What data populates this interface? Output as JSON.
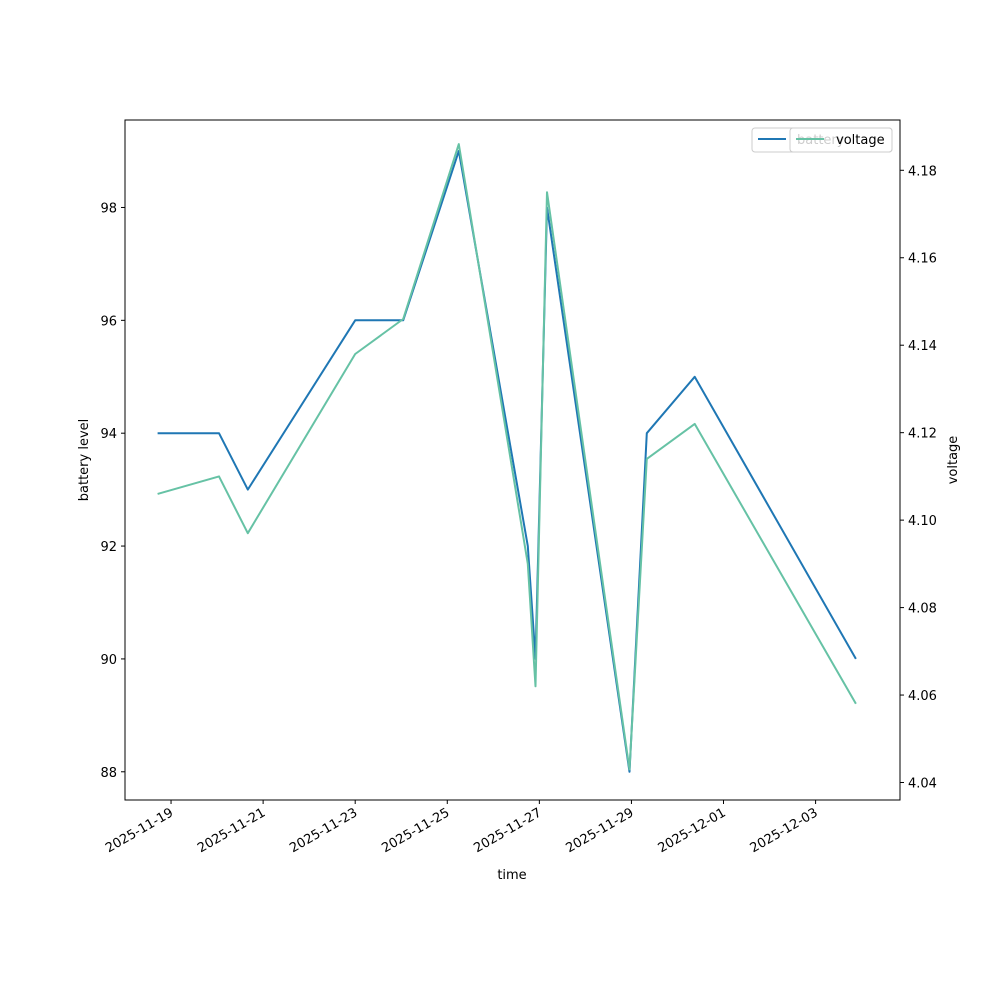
{
  "chart_data": {
    "type": "line",
    "xlabel": "time",
    "ylabel": "battery level",
    "y2label": "voltage",
    "xlim": [
      "2025-11-18T00:00",
      "2025-12-04T20:00"
    ],
    "ylim": [
      87.5,
      99.55
    ],
    "y2lim": [
      4.036,
      4.1915
    ],
    "x_ticks": [
      "2025-11-19",
      "2025-11-21",
      "2025-11-23",
      "2025-11-25",
      "2025-11-27",
      "2025-11-29",
      "2025-12-01",
      "2025-12-03"
    ],
    "y_ticks": [
      88,
      90,
      92,
      94,
      96,
      98
    ],
    "y2_ticks": [
      4.04,
      4.06,
      4.08,
      4.1,
      4.12,
      4.14,
      4.16,
      4.18
    ],
    "y2_tick_labels": [
      "4.04",
      "4.06",
      "4.08",
      "4.10",
      "4.12",
      "4.14",
      "4.16",
      "4.18"
    ],
    "grid": false,
    "legend_position": "top-right",
    "x": [
      "2025-11-18T17:00",
      "2025-11-20T01:00",
      "2025-11-20T16:00",
      "2025-11-23T00:00",
      "2025-11-24T01:00",
      "2025-11-25T06:00",
      "2025-11-26T18:00",
      "2025-11-26T22:00",
      "2025-11-27T04:00",
      "2025-11-28T23:00",
      "2025-11-29T08:00",
      "2025-11-30T09:00",
      "2025-12-03T21:00"
    ],
    "series": [
      {
        "name": "battery",
        "axis": "left",
        "color": "#1f77b4",
        "values": [
          94,
          94,
          93,
          96,
          96,
          99,
          92,
          90,
          98,
          88,
          94,
          95,
          90
        ]
      },
      {
        "name": "voltage",
        "axis": "right",
        "color": "#66c2a5",
        "values": [
          4.106,
          4.11,
          4.097,
          4.138,
          4.146,
          4.186,
          4.09,
          4.062,
          4.175,
          4.043,
          4.114,
          4.122,
          4.058
        ]
      }
    ],
    "legend": {
      "entries": [
        {
          "label": "battery",
          "color": "#1f77b4"
        },
        {
          "label": "voltage",
          "color": "#66c2a5"
        }
      ]
    }
  }
}
